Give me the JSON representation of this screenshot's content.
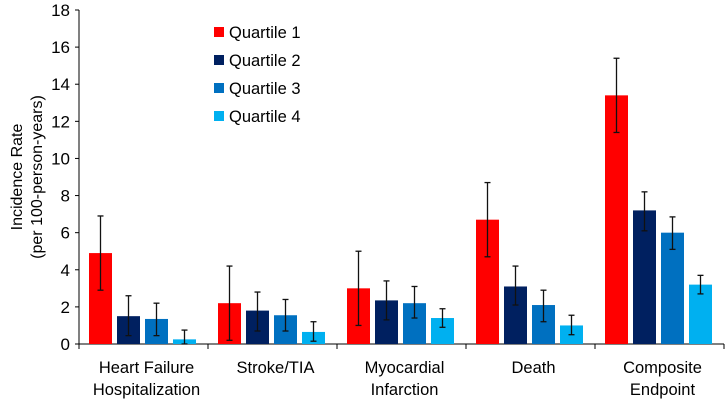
{
  "chart_data": {
    "type": "bar",
    "title": "",
    "xlabel": "",
    "ylabel": [
      "Incidence Rate",
      "(per 100-person-years)"
    ],
    "ylim": [
      0,
      18
    ],
    "yticks": [
      "0",
      "2",
      "4",
      "6",
      "8",
      "10",
      "12",
      "14",
      "16",
      "18"
    ],
    "grid": false,
    "legend_position": "top-left",
    "categories": [
      [
        "Heart Failure",
        "Hospitalization"
      ],
      [
        "Stroke/TIA"
      ],
      [
        "Myocardial",
        "Infarction"
      ],
      [
        "Death"
      ],
      [
        "Composite",
        "Endpoint"
      ]
    ],
    "series": [
      {
        "name": "Quartile 1",
        "color": "#ff0000",
        "values": [
          4.9,
          2.2,
          3.0,
          6.7,
          13.4
        ],
        "err_low": [
          2.9,
          0.2,
          1.0,
          4.7,
          11.4
        ],
        "err_high": [
          6.9,
          4.2,
          5.0,
          8.7,
          15.4
        ]
      },
      {
        "name": "Quartile 2",
        "color": "#002060",
        "values": [
          1.5,
          1.8,
          2.35,
          3.1,
          7.2
        ],
        "err_low": [
          0.45,
          0.7,
          1.3,
          2.1,
          6.1
        ],
        "err_high": [
          2.6,
          2.8,
          3.4,
          4.2,
          8.2
        ]
      },
      {
        "name": "Quartile 3",
        "color": "#0070c0",
        "values": [
          1.35,
          1.55,
          2.2,
          2.1,
          6.0
        ],
        "err_low": [
          0.45,
          0.7,
          1.4,
          1.2,
          5.1
        ],
        "err_high": [
          2.2,
          2.4,
          3.1,
          2.9,
          6.85
        ]
      },
      {
        "name": "Quartile 4",
        "color": "#00b0f0",
        "values": [
          0.25,
          0.65,
          1.4,
          1.0,
          3.2
        ],
        "err_low": [
          0.0,
          0.15,
          0.9,
          0.5,
          2.7
        ],
        "err_high": [
          0.75,
          1.2,
          1.9,
          1.55,
          3.7
        ]
      }
    ]
  }
}
